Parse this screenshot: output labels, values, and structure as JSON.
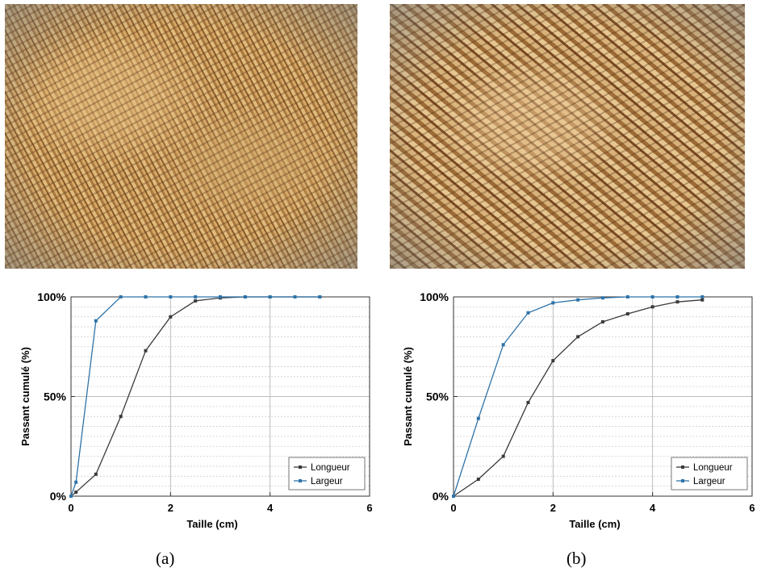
{
  "panels": [
    {
      "label": "(a)",
      "photo_icon": "wood-chips-photo"
    },
    {
      "label": "(b)",
      "photo_icon": "wood-chips-photo"
    }
  ],
  "colors": {
    "longueur": "#3a3a3a",
    "largeur": "#2f73a8"
  },
  "chart_data": [
    {
      "type": "line",
      "title": "",
      "xlabel": "Taille (cm)",
      "ylabel": "Passant cumulé (%)",
      "xlim": [
        0,
        6
      ],
      "ylim": [
        0,
        100
      ],
      "x_ticks": [
        "0",
        "2",
        "4",
        "6"
      ],
      "y_ticks": [
        "0%",
        "50%",
        "100%"
      ],
      "grid": true,
      "legend_position": "bottom-right",
      "series": [
        {
          "name": "Longueur",
          "x": [
            0,
            0.1,
            0.5,
            1,
            1.5,
            2,
            2.5,
            3,
            3.5,
            4,
            4.5,
            5
          ],
          "y": [
            0,
            2,
            11,
            40,
            73,
            90,
            98,
            99.5,
            100,
            100,
            100,
            100
          ]
        },
        {
          "name": "Largeur",
          "x": [
            0,
            0.1,
            0.5,
            1,
            1.5,
            2,
            2.5,
            3,
            3.5,
            4,
            4.5,
            5
          ],
          "y": [
            0,
            7,
            88,
            100,
            100,
            100,
            100,
            100,
            100,
            100,
            100,
            100
          ]
        }
      ]
    },
    {
      "type": "line",
      "title": "",
      "xlabel": "Taille (cm)",
      "ylabel": "Passant cumulé (%)",
      "xlim": [
        0,
        6
      ],
      "ylim": [
        0,
        100
      ],
      "x_ticks": [
        "0",
        "2",
        "4",
        "6"
      ],
      "y_ticks": [
        "0%",
        "50%",
        "100%"
      ],
      "grid": true,
      "legend_position": "bottom-right",
      "series": [
        {
          "name": "Longueur",
          "x": [
            0,
            0.5,
            1,
            1.5,
            2,
            2.5,
            3,
            3.5,
            4,
            4.5,
            5
          ],
          "y": [
            0,
            8.5,
            20,
            47,
            68,
            80,
            87.5,
            91.5,
            95,
            97.5,
            98.5
          ]
        },
        {
          "name": "Largeur",
          "x": [
            0,
            0.5,
            1,
            1.5,
            2,
            2.5,
            3,
            3.5,
            4,
            4.5,
            5
          ],
          "y": [
            0,
            39,
            76,
            92,
            97,
            98.5,
            99.5,
            100,
            100,
            100,
            100
          ]
        }
      ]
    }
  ]
}
